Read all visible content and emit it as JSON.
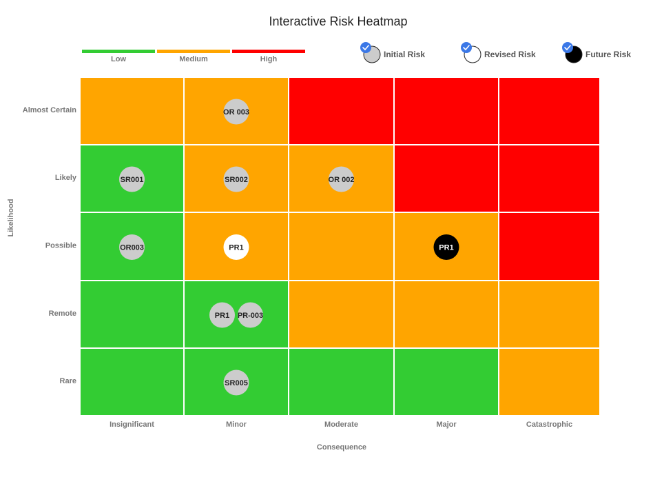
{
  "title": "Interactive Risk Heatmap",
  "colors": {
    "low": "#33cc33",
    "medium": "#ffa500",
    "high": "#ff0000",
    "initial": "#cccccc",
    "revised": "#ffffff",
    "future": "#000000",
    "check": "#3b78e7",
    "axis_text": "#777777",
    "title_text": "#222222"
  },
  "severity_legend": [
    {
      "label": "Low",
      "level": "low"
    },
    {
      "label": "Medium",
      "level": "medium"
    },
    {
      "label": "High",
      "level": "high"
    }
  ],
  "series_legend": [
    {
      "label": "Initial Risk",
      "series": "initial",
      "checked": true
    },
    {
      "label": "Revised Risk",
      "series": "revised",
      "checked": true
    },
    {
      "label": "Future Risk",
      "series": "future",
      "checked": true
    }
  ],
  "chart_data": {
    "type": "heatmap",
    "title": "Interactive Risk Heatmap",
    "xlabel": "Consequence",
    "ylabel": "Likelihood",
    "x_categories": [
      "Insignificant",
      "Minor",
      "Moderate",
      "Major",
      "Catastrophic"
    ],
    "y_categories": [
      "Almost Certain",
      "Likely",
      "Possible",
      "Remote",
      "Rare"
    ],
    "cells": [
      [
        "medium",
        "medium",
        "high",
        "high",
        "high"
      ],
      [
        "low",
        "medium",
        "medium",
        "high",
        "high"
      ],
      [
        "low",
        "medium",
        "medium",
        "medium",
        "high"
      ],
      [
        "low",
        "low",
        "medium",
        "medium",
        "medium"
      ],
      [
        "low",
        "low",
        "low",
        "low",
        "medium"
      ]
    ],
    "risks": [
      {
        "label": "OR 003",
        "consequence": "Minor",
        "likelihood": "Almost Certain",
        "series": "initial"
      },
      {
        "label": "SR001",
        "consequence": "Insignificant",
        "likelihood": "Likely",
        "series": "initial"
      },
      {
        "label": "SR002",
        "consequence": "Minor",
        "likelihood": "Likely",
        "series": "initial"
      },
      {
        "label": "OR 002",
        "consequence": "Moderate",
        "likelihood": "Likely",
        "series": "initial"
      },
      {
        "label": "OR003",
        "consequence": "Insignificant",
        "likelihood": "Possible",
        "series": "initial"
      },
      {
        "label": "PR1",
        "consequence": "Minor",
        "likelihood": "Possible",
        "series": "revised"
      },
      {
        "label": "PR1",
        "consequence": "Major",
        "likelihood": "Possible",
        "series": "future"
      },
      {
        "label": "PR1",
        "consequence": "Minor",
        "likelihood": "Remote",
        "series": "initial"
      },
      {
        "label": "PR-003",
        "consequence": "Minor",
        "likelihood": "Remote",
        "series": "initial"
      },
      {
        "label": "SR005",
        "consequence": "Minor",
        "likelihood": "Rare",
        "series": "initial"
      }
    ]
  }
}
